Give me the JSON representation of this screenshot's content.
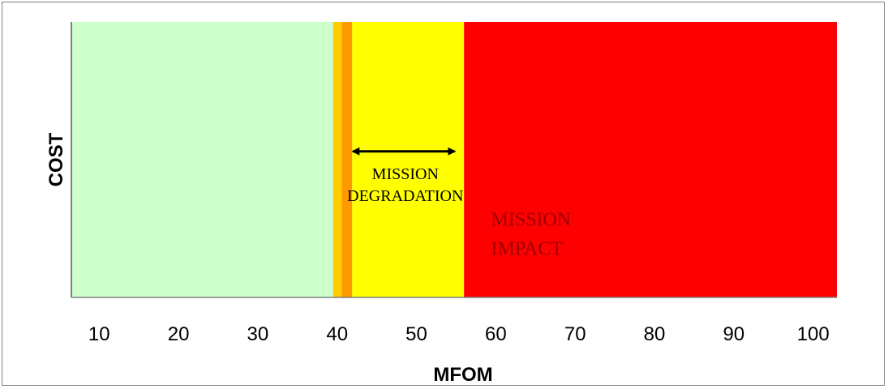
{
  "chart_data": {
    "type": "area",
    "xlabel": "MFOM",
    "ylabel": "COST",
    "title": "",
    "xlim": [
      6.5,
      103
    ],
    "x_ticks": [
      10,
      20,
      30,
      40,
      50,
      60,
      70,
      80,
      90,
      100
    ],
    "grid": false,
    "regions": [
      {
        "x_start": 6.5,
        "x_end": 39.5,
        "color": "#ccffcc"
      },
      {
        "x_start": 39.5,
        "x_end": 40.6,
        "color": "#ffcc00"
      },
      {
        "x_start": 40.6,
        "x_end": 41.9,
        "color": "#ff9900"
      },
      {
        "x_start": 41.9,
        "x_end": 56.0,
        "color": "#ffff00"
      },
      {
        "x_start": 56.0,
        "x_end": 103,
        "color": "#ff0000"
      }
    ],
    "arrow": {
      "x_start": 42.0,
      "x_end": 54.8,
      "y_fraction": 0.47
    },
    "annotations": [
      {
        "lines": [
          "MISSION",
          "DEGRADATION"
        ],
        "x": 48.6,
        "y_fraction": 0.57,
        "color": "#000000",
        "style": "normal"
      },
      {
        "lines": [
          "MISSION",
          "IMPACT"
        ],
        "x": 59.4,
        "y_fraction": 0.74,
        "color": "#990000",
        "style": "large"
      }
    ]
  },
  "colors": {
    "axis": "#808080",
    "arrow": "#000000"
  }
}
